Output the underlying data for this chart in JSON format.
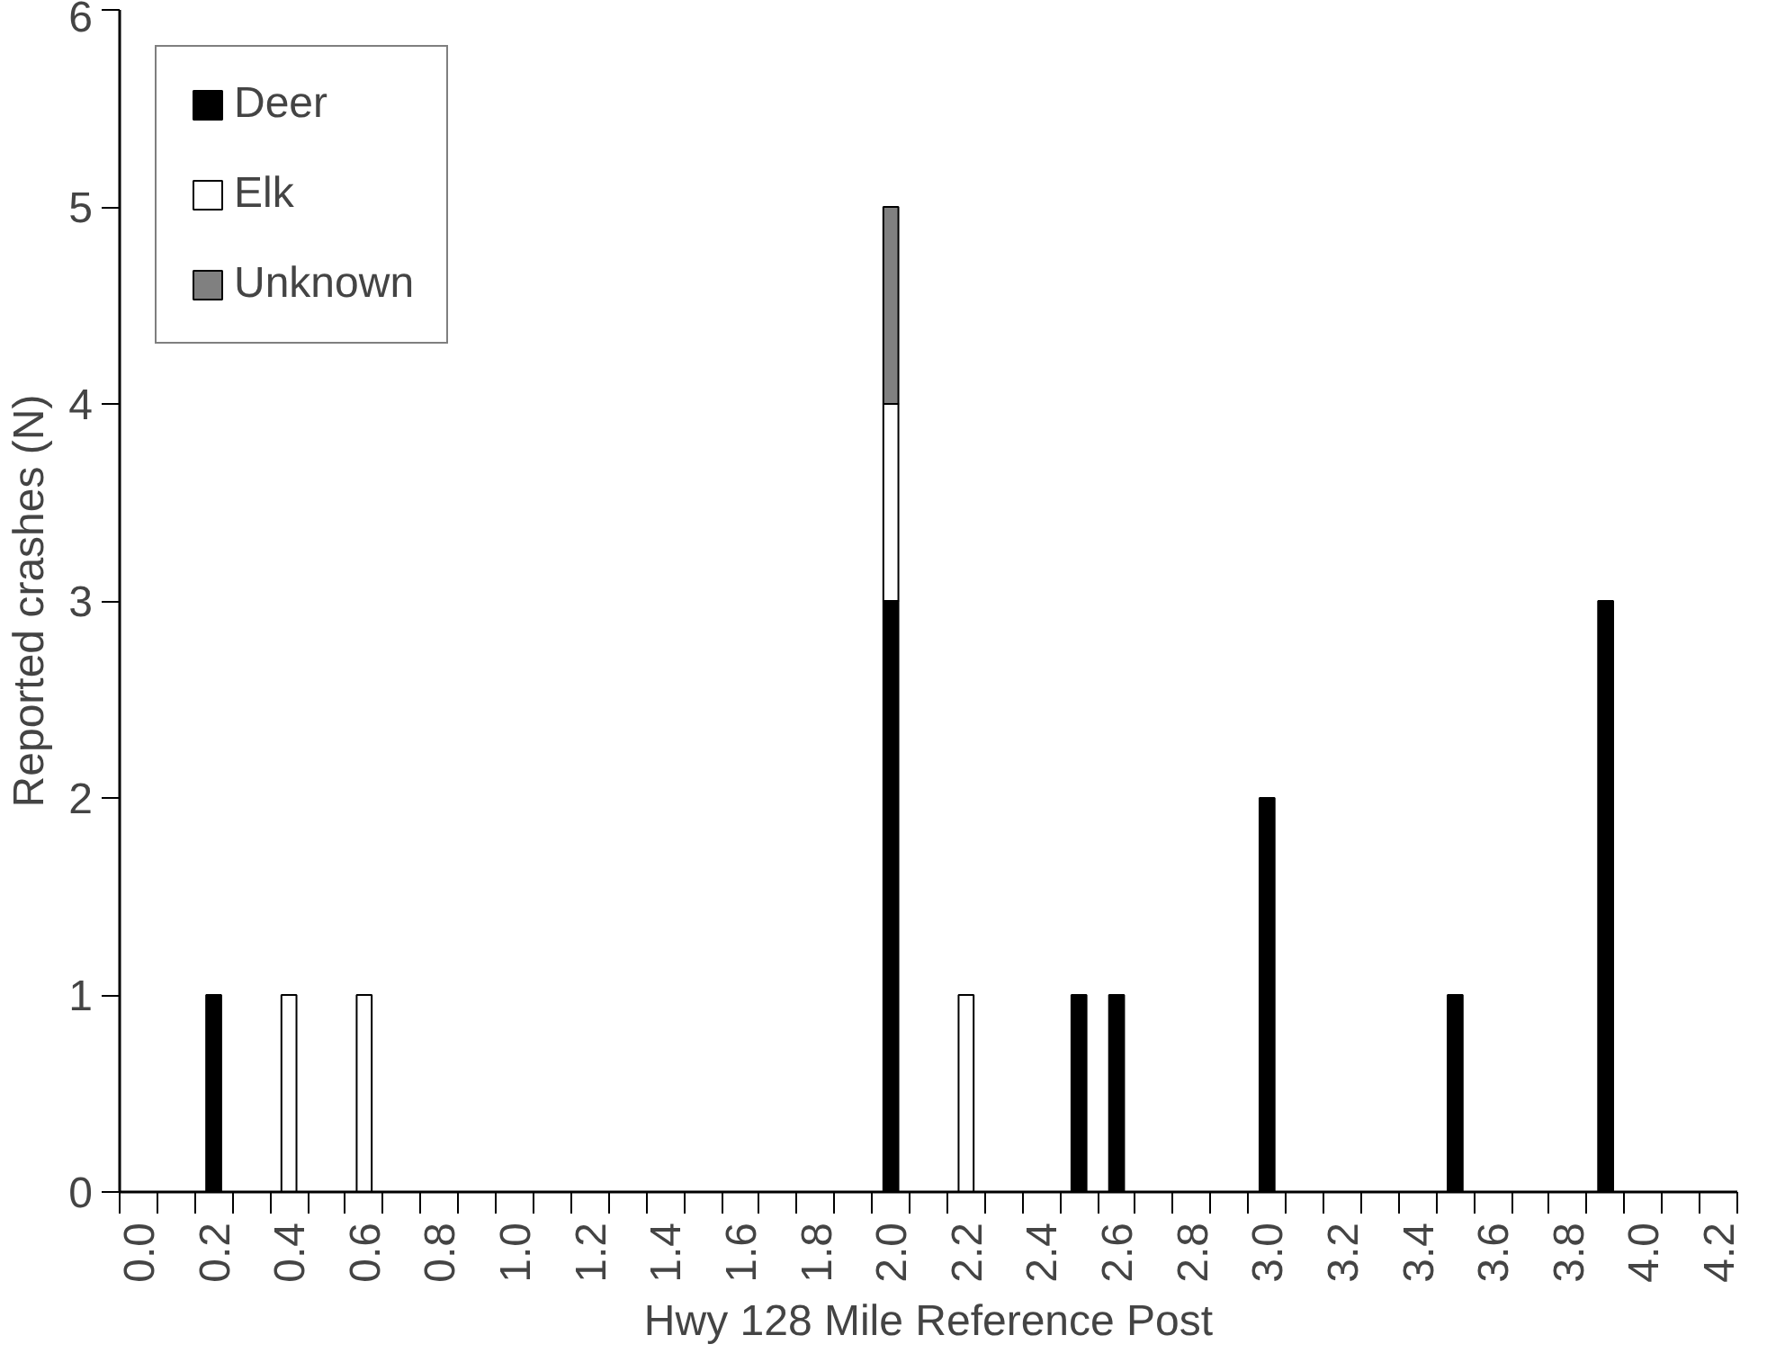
{
  "chart_data": {
    "type": "bar",
    "stacked": true,
    "xlabel": "Hwy 128 Mile Reference Post",
    "ylabel": "Reported crashes (N)",
    "categories": [
      "0.0",
      null,
      "0.2",
      null,
      "0.4",
      null,
      "0.6",
      null,
      "0.8",
      null,
      "1.0",
      null,
      "1.2",
      null,
      "1.4",
      null,
      "1.6",
      null,
      "1.8",
      null,
      "2.0",
      null,
      "2.2",
      null,
      "2.4",
      null,
      "2.6",
      null,
      "2.8",
      null,
      "3.0",
      null,
      "3.2",
      null,
      "3.4",
      null,
      "3.6",
      null,
      "3.8",
      null,
      "4.0",
      null,
      "4.2"
    ],
    "series": [
      {
        "name": "Deer",
        "color": "#000000",
        "values": [
          0,
          0,
          1,
          0,
          0,
          0,
          0,
          0,
          0,
          0,
          0,
          0,
          0,
          0,
          0,
          0,
          0,
          0,
          0,
          0,
          3,
          0,
          0,
          0,
          0,
          1,
          1,
          0,
          0,
          0,
          2,
          0,
          0,
          0,
          0,
          1,
          0,
          0,
          0,
          3,
          0,
          0,
          0
        ]
      },
      {
        "name": "Elk",
        "color": "#ffffff",
        "values": [
          0,
          0,
          0,
          0,
          1,
          0,
          1,
          0,
          0,
          0,
          0,
          0,
          0,
          0,
          0,
          0,
          0,
          0,
          0,
          0,
          1,
          0,
          1,
          0,
          0,
          0,
          0,
          0,
          0,
          0,
          0,
          0,
          0,
          0,
          0,
          0,
          0,
          0,
          0,
          0,
          0,
          0,
          0
        ]
      },
      {
        "name": "Unknown",
        "color": "#808080",
        "values": [
          0,
          0,
          0,
          0,
          0,
          0,
          0,
          0,
          0,
          0,
          0,
          0,
          0,
          0,
          0,
          0,
          0,
          0,
          0,
          0,
          1,
          0,
          0,
          0,
          0,
          0,
          0,
          0,
          0,
          0,
          0,
          0,
          0,
          0,
          0,
          0,
          0,
          0,
          0,
          0,
          0,
          0,
          0
        ]
      }
    ],
    "ylim": [
      0,
      6
    ],
    "yticks": [
      0,
      1,
      2,
      3,
      4,
      5,
      6
    ],
    "grid": false,
    "legend": "top left"
  }
}
